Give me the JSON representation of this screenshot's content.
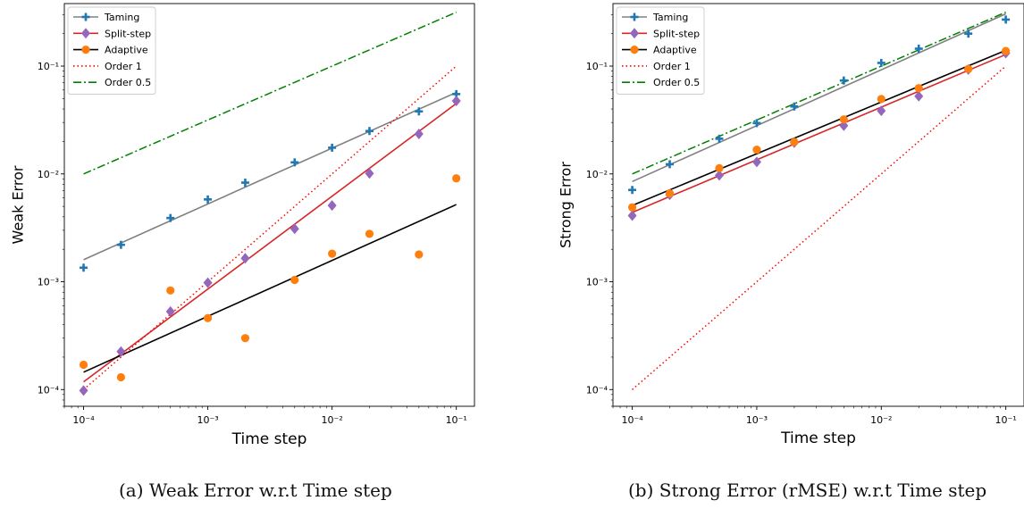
{
  "figure": {
    "captions": [
      "(a) Weak Error w.r.t Time step",
      "(b) Strong Error (rMSE) w.r.t Time step"
    ]
  },
  "chart_data": [
    {
      "type": "scatter",
      "xlabel": "Time step",
      "ylabel": "Weak Error",
      "xscale": "log",
      "yscale": "log",
      "xlim": [
        7e-05,
        0.14
      ],
      "ylim": [
        7e-05,
        0.38
      ],
      "xticks": [
        0.0001,
        0.001,
        0.01,
        0.1
      ],
      "xticklabels": [
        "10⁻⁴",
        "10⁻³",
        "10⁻²",
        "10⁻¹"
      ],
      "yticks": [
        0.0001,
        0.001,
        0.01,
        0.1
      ],
      "yticklabels": [
        "10⁻⁴",
        "10⁻³",
        "10⁻²",
        "10⁻¹"
      ],
      "grid": false,
      "legend_position": "top-left",
      "x": [
        0.0001,
        0.0002,
        0.0005,
        0.001,
        0.002,
        0.005,
        0.01,
        0.02,
        0.05,
        0.1
      ],
      "series": [
        {
          "name": "Taming",
          "color": "#1f77b4",
          "marker": "plus",
          "fit_color": "#808080",
          "values": [
            0.00135,
            0.0022,
            0.0039,
            0.0058,
            0.0083,
            0.0128,
            0.0175,
            0.025,
            0.038,
            0.055
          ],
          "fit": [
            [
              0.0001,
              0.0016
            ],
            [
              0.1,
              0.057
            ]
          ]
        },
        {
          "name": "Split-step",
          "color": "#9467bd",
          "marker": "diamond",
          "fit_color": "#d62728",
          "values": [
            9.8e-05,
            0.000225,
            0.00053,
            0.00098,
            0.00165,
            0.0031,
            0.0051,
            0.0101,
            0.0235,
            0.0475
          ],
          "fit": [
            [
              0.0001,
              0.000118
            ],
            [
              0.1,
              0.045
            ]
          ]
        },
        {
          "name": "Adaptive",
          "color": "#ff7f0e",
          "marker": "circle",
          "fit_color": "#000000",
          "values": [
            0.00017,
            0.00013,
            0.00083,
            0.00046,
            0.0003,
            0.00104,
            0.00182,
            0.00278,
            0.00179,
            0.0091
          ],
          "fit": [
            [
              0.0001,
              0.000145
            ],
            [
              0.1,
              0.0052
            ]
          ]
        }
      ],
      "reference_lines": [
        {
          "name": "Order 1",
          "color": "#ff0000",
          "style": "dotted",
          "points": [
            [
              0.0001,
              0.0001
            ],
            [
              0.1,
              0.1
            ]
          ]
        },
        {
          "name": "Order 0.5",
          "color": "#008000",
          "style": "dashdot",
          "points": [
            [
              0.0001,
              0.01
            ],
            [
              0.1,
              0.316
            ]
          ]
        }
      ]
    },
    {
      "type": "scatter",
      "xlabel": "Time step",
      "ylabel": "Strong Error",
      "xscale": "log",
      "yscale": "log",
      "xlim": [
        7e-05,
        0.14
      ],
      "ylim": [
        7e-05,
        0.38
      ],
      "xticks": [
        0.0001,
        0.001,
        0.01,
        0.1
      ],
      "xticklabels": [
        "10⁻⁴",
        "10⁻³",
        "10⁻²",
        "10⁻¹"
      ],
      "yticks": [
        0.0001,
        0.001,
        0.01,
        0.1
      ],
      "yticklabels": [
        "10⁻⁴",
        "10⁻³",
        "10⁻²",
        "10⁻¹"
      ],
      "grid": false,
      "legend_position": "top-left",
      "x": [
        0.0001,
        0.0002,
        0.0005,
        0.001,
        0.002,
        0.005,
        0.01,
        0.02,
        0.05,
        0.1
      ],
      "series": [
        {
          "name": "Taming",
          "color": "#1f77b4",
          "marker": "plus",
          "fit_color": "#808080",
          "values": [
            0.0071,
            0.0123,
            0.0212,
            0.0296,
            0.0422,
            0.0735,
            0.107,
            0.145,
            0.2,
            0.27
          ],
          "fit": [
            [
              0.0001,
              0.0085
            ],
            [
              0.1,
              0.305
            ]
          ]
        },
        {
          "name": "Split-step",
          "color": "#9467bd",
          "marker": "diamond",
          "fit_color": "#d62728",
          "values": [
            0.0041,
            0.0064,
            0.0097,
            0.0129,
            0.0195,
            0.028,
            0.0385,
            0.0525,
            0.093,
            0.132
          ],
          "fit": [
            [
              0.0001,
              0.0044
            ],
            [
              0.1,
              0.128
            ]
          ]
        },
        {
          "name": "Adaptive",
          "color": "#ff7f0e",
          "marker": "circle",
          "fit_color": "#000000",
          "values": [
            0.0049,
            0.0066,
            0.0113,
            0.0168,
            0.0198,
            0.032,
            0.0495,
            0.0625,
            0.094,
            0.138
          ],
          "fit": [
            [
              0.0001,
              0.0051
            ],
            [
              0.1,
              0.14
            ]
          ]
        }
      ],
      "reference_lines": [
        {
          "name": "Order 1",
          "color": "#ff0000",
          "style": "dotted",
          "points": [
            [
              0.0001,
              0.0001
            ],
            [
              0.1,
              0.1
            ]
          ]
        },
        {
          "name": "Order 0.5",
          "color": "#008000",
          "style": "dashdot",
          "points": [
            [
              0.0001,
              0.01
            ],
            [
              0.1,
              0.316
            ]
          ]
        }
      ]
    }
  ]
}
